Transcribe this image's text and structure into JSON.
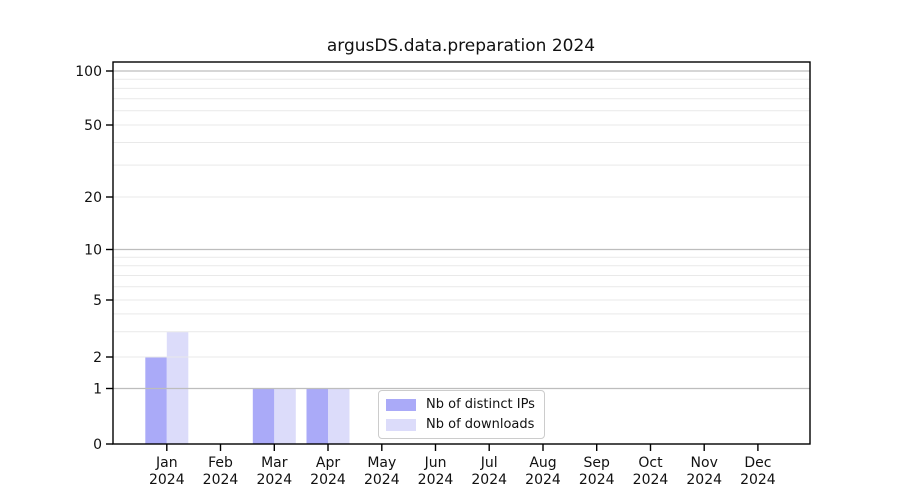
{
  "chart_data": {
    "type": "bar",
    "title": "argusDS.data.preparation 2024",
    "year_label": "2024",
    "categories": [
      "Jan",
      "Feb",
      "Mar",
      "Apr",
      "May",
      "Jun",
      "Jul",
      "Aug",
      "Sep",
      "Oct",
      "Nov",
      "Dec"
    ],
    "series": [
      {
        "key": "distinct-ips",
        "name": "Nb of distinct IPs",
        "color": "#aaaaf8",
        "values": [
          2,
          0,
          1,
          1,
          0,
          0,
          0,
          0,
          0,
          0,
          0,
          0
        ]
      },
      {
        "key": "downloads",
        "name": "Nb of downloads",
        "color": "#dcdcfa",
        "values": [
          3,
          0,
          1,
          1,
          0,
          0,
          0,
          0,
          0,
          0,
          0,
          0
        ]
      }
    ],
    "yscale": "log-above-1-linear-below",
    "yticks": [
      0,
      1,
      2,
      5,
      10,
      20,
      50,
      100
    ],
    "ylim": [
      0,
      112
    ],
    "xlabel": "",
    "ylabel": "",
    "grid": {
      "major_values": [
        1,
        10,
        100
      ],
      "minor_values": [
        2,
        3,
        4,
        5,
        6,
        7,
        8,
        9,
        20,
        30,
        40,
        50,
        60,
        70,
        80,
        90
      ],
      "major_color": "#bdbdbd",
      "minor_color": "#e9e9e9"
    },
    "legend": {
      "position": "lower-center-inside"
    },
    "axis_color": "#000000"
  }
}
